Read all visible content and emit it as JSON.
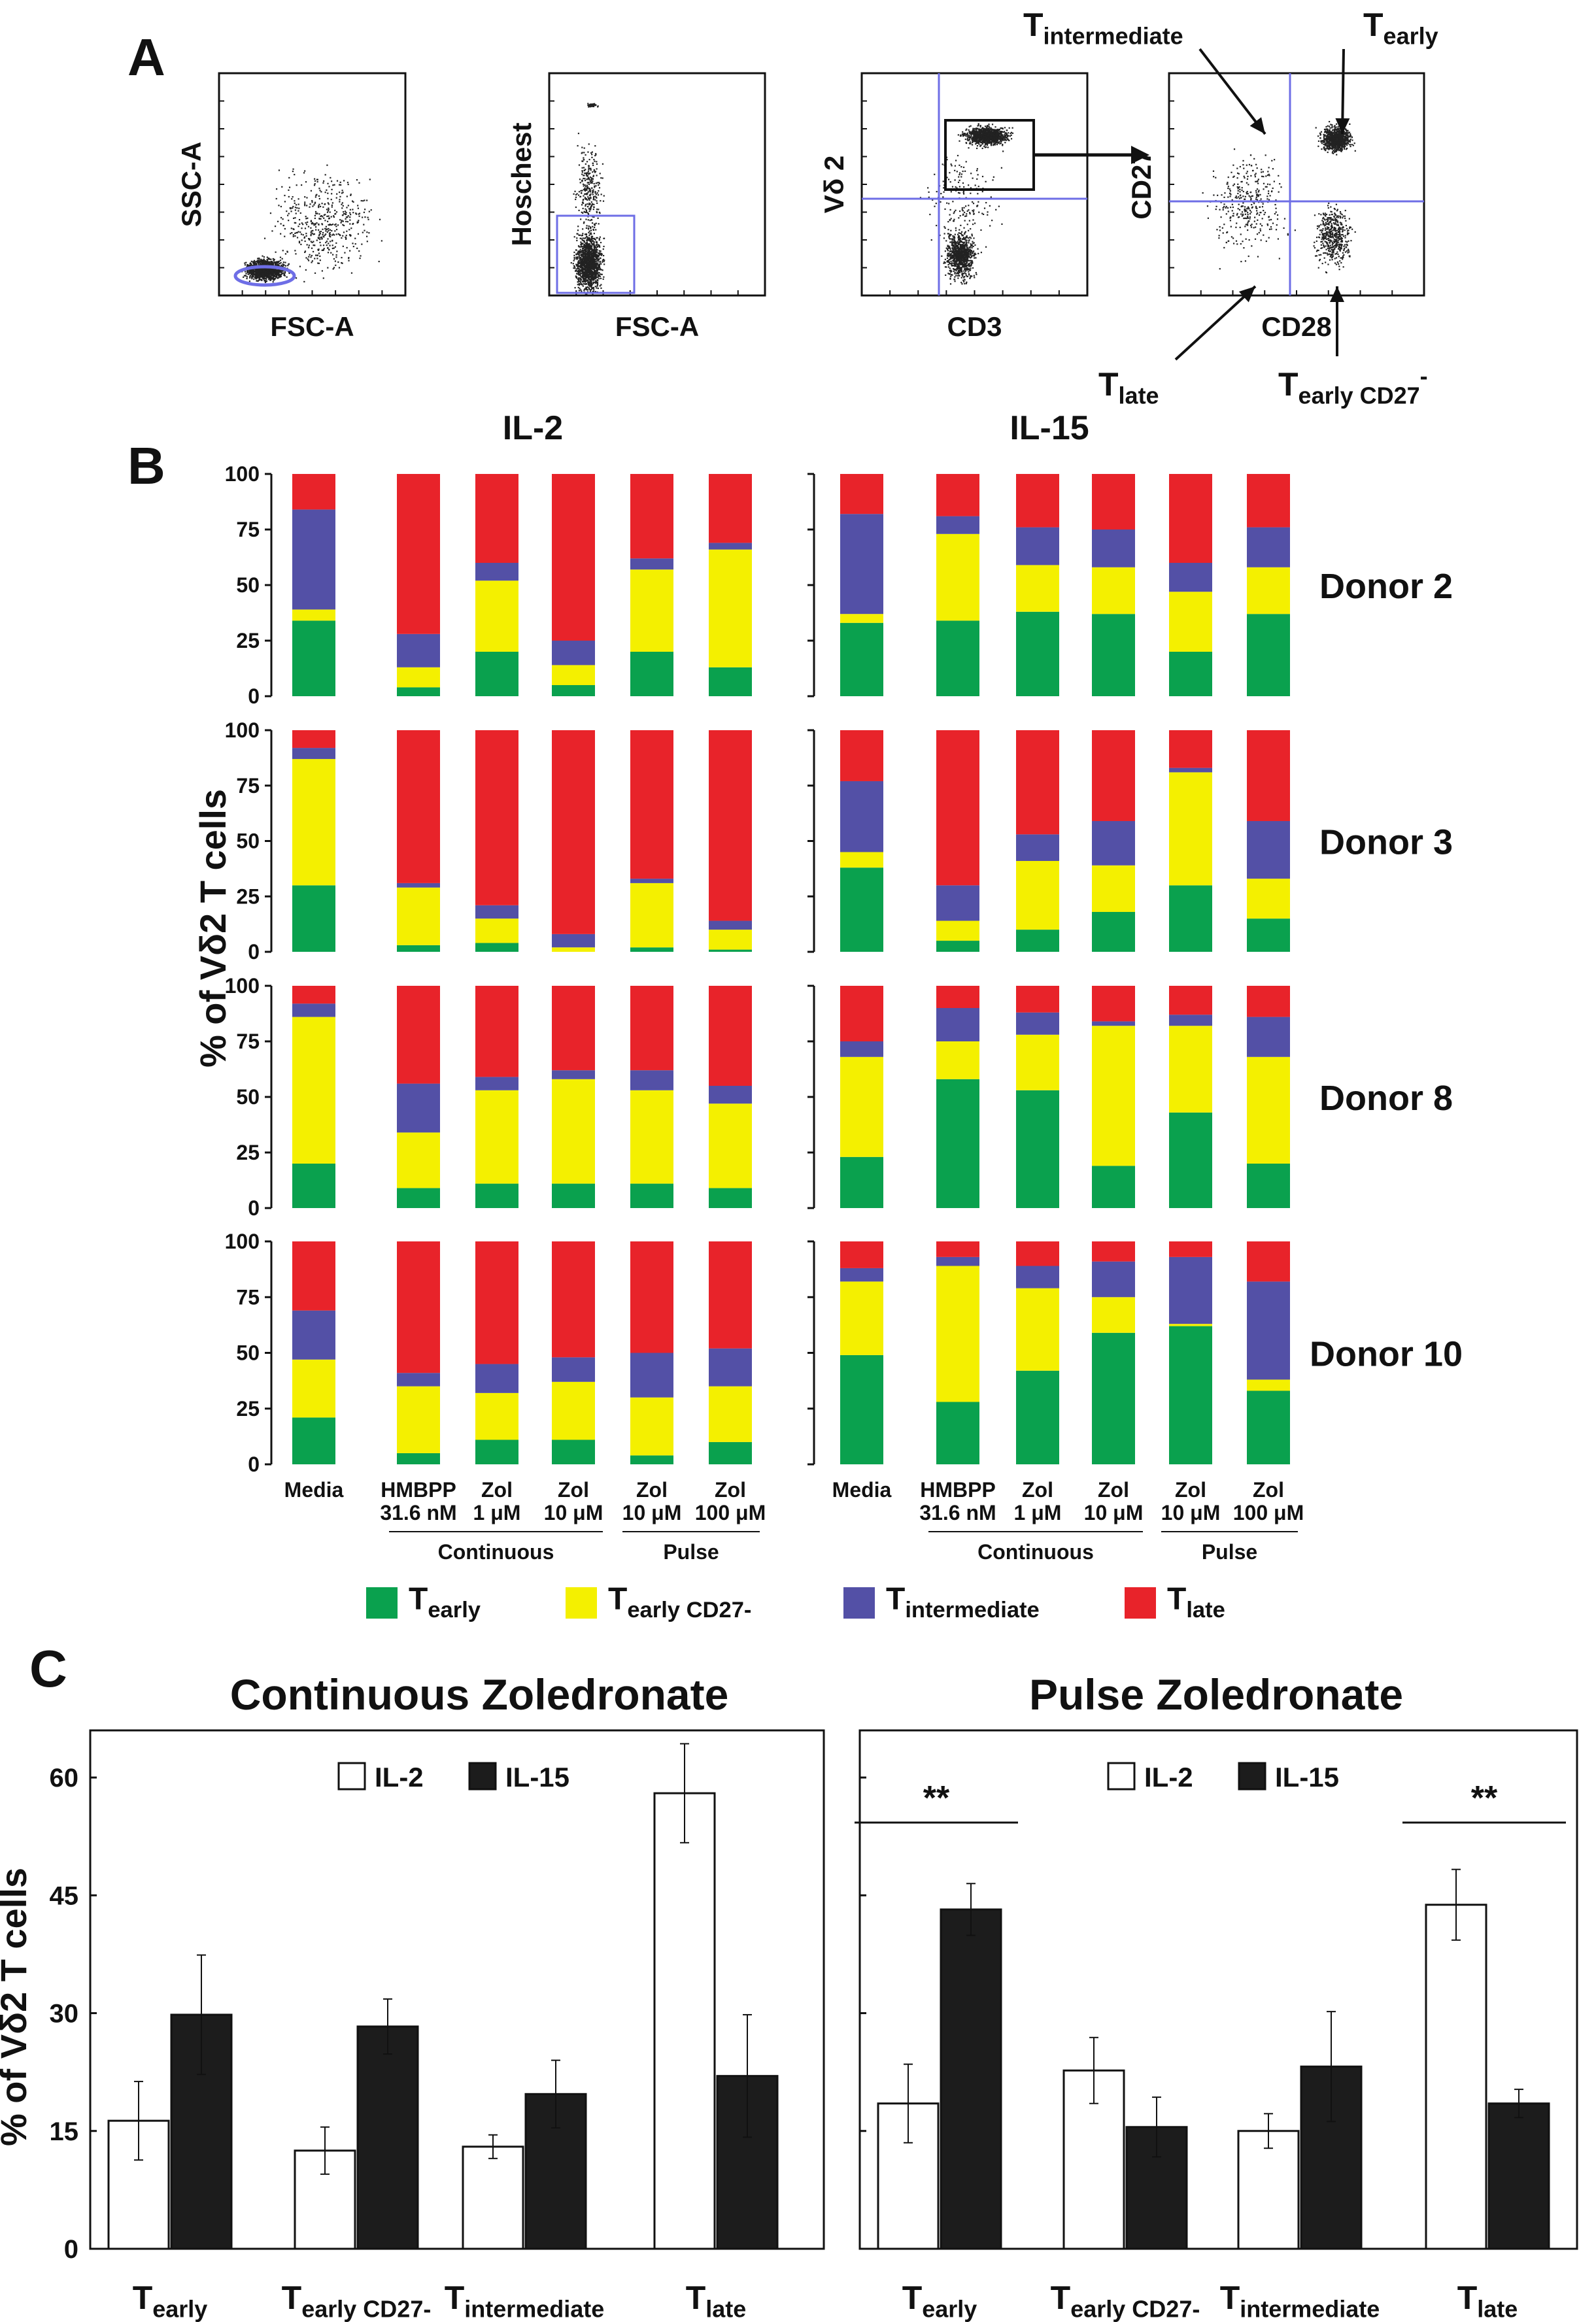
{
  "colors": {
    "early": "#0aa14e",
    "early_cd27": "#f4f000",
    "intermediate": "#5350a6",
    "late": "#e8232a",
    "gate": "#6e6ee6",
    "il2_fill": "#ffffff",
    "il15_fill": "#1c1c1c"
  },
  "panels": {
    "A": "A",
    "B": "B",
    "C": "C"
  },
  "panel_a": {
    "plots": [
      {
        "xlabel": "FSC-A",
        "ylabel": "SSC-A"
      },
      {
        "xlabel": "FSC-A",
        "ylabel": "Hoschest"
      },
      {
        "xlabel": "CD3",
        "ylabel": "Vδ 2"
      },
      {
        "xlabel": "CD28",
        "ylabel": "CD27"
      }
    ],
    "annotations": {
      "t_intermediate": {
        "main": "T",
        "sub": "intermediate"
      },
      "t_early": {
        "main": "T",
        "sub": "early"
      },
      "t_late": {
        "main": "T",
        "sub": "late"
      },
      "t_early_cd27": {
        "main": "T",
        "sub": "early CD27",
        "sup": "-"
      }
    }
  },
  "chart_data": [
    {
      "type": "bar",
      "stacked": true,
      "title": "IL-2",
      "ylabel": "% of Vδ2 T cells",
      "ylim": [
        0,
        100
      ],
      "yticks": [
        "0",
        "25",
        "50",
        "75",
        "100"
      ],
      "categories": [
        [
          "Media"
        ],
        [
          "HMBPP",
          "31.6 nM"
        ],
        [
          "Zol",
          "1 μM"
        ],
        [
          "Zol",
          "10 μM"
        ],
        [
          "Zol",
          "10 μM"
        ],
        [
          "Zol",
          "100 μM"
        ]
      ],
      "groups": [
        {
          "label": "Continuous",
          "span": [
            1,
            3
          ]
        },
        {
          "label": "Pulse",
          "span": [
            4,
            5
          ]
        }
      ],
      "donors": [
        {
          "name": "Donor 2",
          "early": [
            34,
            4,
            20,
            5,
            20,
            13
          ],
          "early_cd27": [
            5,
            9,
            32,
            9,
            37,
            53
          ],
          "intermediate": [
            45,
            15,
            8,
            11,
            5,
            3
          ]
        },
        {
          "name": "Donor 3",
          "early": [
            30,
            3,
            4,
            0,
            2,
            1
          ],
          "early_cd27": [
            57,
            26,
            11,
            2,
            29,
            9
          ],
          "intermediate": [
            5,
            2,
            6,
            6,
            2,
            4
          ]
        },
        {
          "name": "Donor 8",
          "early": [
            20,
            9,
            11,
            11,
            11,
            9
          ],
          "early_cd27": [
            66,
            25,
            42,
            47,
            42,
            38
          ],
          "intermediate": [
            6,
            22,
            6,
            4,
            9,
            8
          ]
        },
        {
          "name": "Donor 10",
          "early": [
            21,
            5,
            11,
            11,
            4,
            10
          ],
          "early_cd27": [
            26,
            30,
            21,
            26,
            26,
            25
          ],
          "intermediate": [
            22,
            6,
            13,
            11,
            20,
            17
          ]
        }
      ]
    },
    {
      "type": "bar",
      "stacked": true,
      "title": "IL-15",
      "ylim": [
        0,
        100
      ],
      "categories": [
        [
          "Media"
        ],
        [
          "HMBPP",
          "31.6 nM"
        ],
        [
          "Zol",
          "1 μM"
        ],
        [
          "Zol",
          "10 μM"
        ],
        [
          "Zol",
          "10 μM"
        ],
        [
          "Zol",
          "100 μM"
        ]
      ],
      "groups": [
        {
          "label": "Continuous",
          "span": [
            1,
            3
          ]
        },
        {
          "label": "Pulse",
          "span": [
            4,
            5
          ]
        }
      ],
      "donors": [
        {
          "name": "Donor 2",
          "early": [
            33,
            34,
            38,
            37,
            20,
            37
          ],
          "early_cd27": [
            4,
            39,
            21,
            21,
            27,
            21
          ],
          "intermediate": [
            45,
            8,
            17,
            17,
            13,
            18
          ]
        },
        {
          "name": "Donor 3",
          "early": [
            38,
            5,
            10,
            18,
            30,
            15
          ],
          "early_cd27": [
            7,
            9,
            31,
            21,
            51,
            18
          ],
          "intermediate": [
            32,
            16,
            12,
            20,
            2,
            26
          ]
        },
        {
          "name": "Donor 8",
          "early": [
            23,
            58,
            53,
            19,
            43,
            20
          ],
          "early_cd27": [
            45,
            17,
            25,
            63,
            39,
            48
          ],
          "intermediate": [
            7,
            15,
            10,
            2,
            5,
            18
          ]
        },
        {
          "name": "Donor 10",
          "early": [
            49,
            28,
            42,
            59,
            62,
            33
          ],
          "early_cd27": [
            33,
            61,
            37,
            16,
            1,
            5
          ],
          "intermediate": [
            6,
            4,
            10,
            16,
            30,
            44
          ]
        }
      ]
    },
    {
      "type": "bar",
      "title": "Continuous Zoledronate",
      "ylabel": "% of Vδ2 T cells",
      "ylim": [
        0,
        66
      ],
      "yticks": [
        "0",
        "15",
        "30",
        "45",
        "60"
      ],
      "categories": [
        {
          "main": "T",
          "sub": "early"
        },
        {
          "main": "T",
          "sub": "early CD27-"
        },
        {
          "main": "T",
          "sub": "intermediate"
        },
        {
          "main": "T",
          "sub": "late"
        }
      ],
      "series": [
        {
          "name": "IL-2",
          "values": [
            16.3,
            12.5,
            13.0,
            58.0
          ],
          "errors": [
            5.0,
            3.0,
            1.5,
            6.3
          ]
        },
        {
          "name": "IL-15",
          "values": [
            29.8,
            28.3,
            19.7,
            22.0
          ],
          "errors": [
            7.6,
            3.5,
            4.3,
            7.8
          ]
        }
      ],
      "significance": []
    },
    {
      "type": "bar",
      "title": "Pulse Zoledronate",
      "ylim": [
        0,
        66
      ],
      "categories": [
        {
          "main": "T",
          "sub": "early"
        },
        {
          "main": "T",
          "sub": "early CD27-"
        },
        {
          "main": "T",
          "sub": "intermediate"
        },
        {
          "main": "T",
          "sub": "late"
        }
      ],
      "series": [
        {
          "name": "IL-2",
          "values": [
            18.5,
            22.7,
            15.0,
            43.8
          ],
          "errors": [
            5.0,
            4.2,
            2.2,
            4.5
          ]
        },
        {
          "name": "IL-15",
          "values": [
            43.2,
            15.5,
            23.2,
            18.5
          ],
          "errors": [
            3.3,
            3.8,
            7.0,
            1.8
          ]
        }
      ],
      "significance": [
        {
          "category": 0,
          "label": "**"
        },
        {
          "category": 3,
          "label": "**"
        }
      ]
    }
  ],
  "legend_b": [
    {
      "main": "T",
      "sub": "early"
    },
    {
      "main": "T",
      "sub": "early CD27-"
    },
    {
      "main": "T",
      "sub": "intermediate"
    },
    {
      "main": "T",
      "sub": "late"
    }
  ]
}
